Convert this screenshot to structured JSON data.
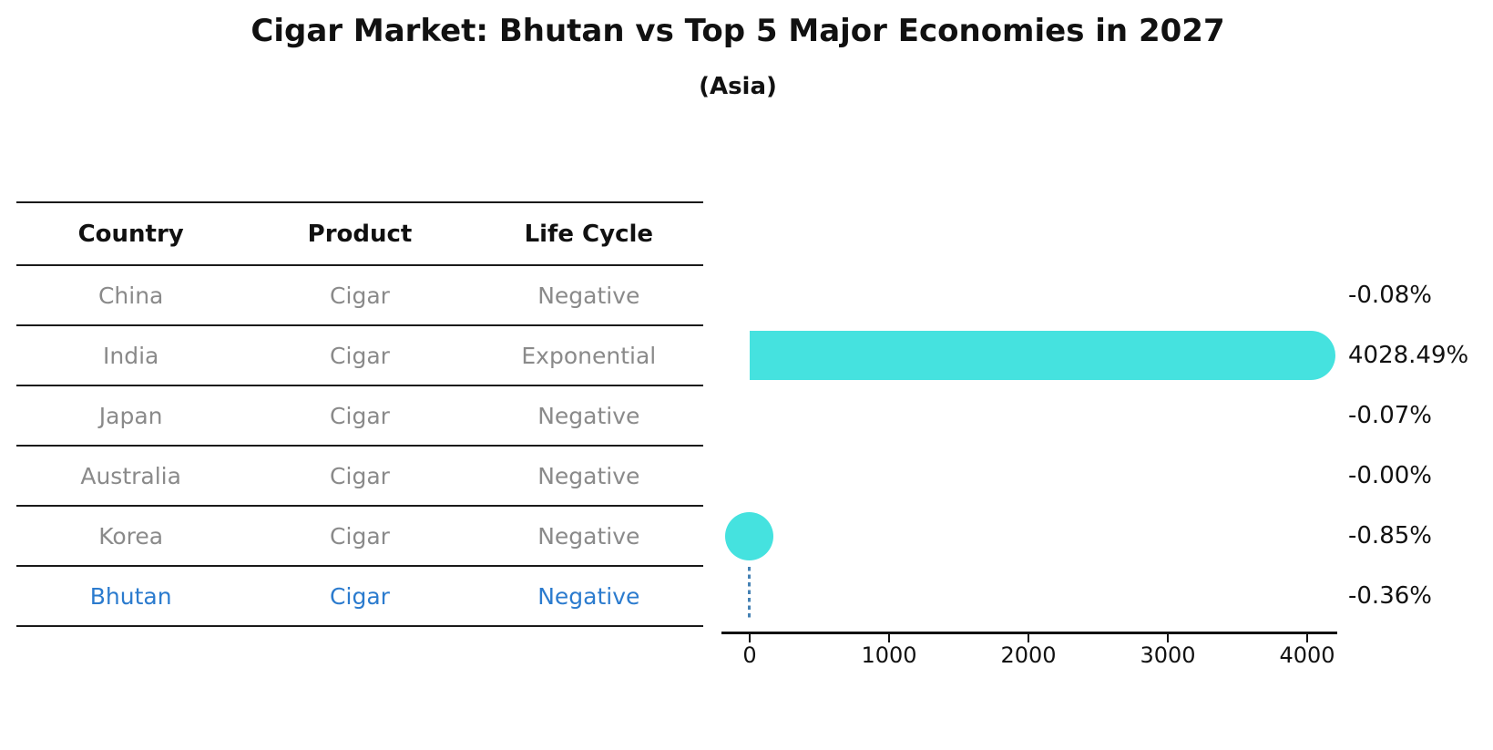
{
  "title": "Cigar Market: Bhutan vs Top 5 Major Economies in 2027",
  "subtitle": "(Asia)",
  "table": {
    "headers": [
      "Country",
      "Product",
      "Life Cycle"
    ],
    "rows": [
      {
        "country": "China",
        "product": "Cigar",
        "life_cycle": "Negative",
        "highlight": false
      },
      {
        "country": "India",
        "product": "Cigar",
        "life_cycle": "Exponential",
        "highlight": false
      },
      {
        "country": "Japan",
        "product": "Cigar",
        "life_cycle": "Negative",
        "highlight": false
      },
      {
        "country": "Australia",
        "product": "Cigar",
        "life_cycle": "Negative",
        "highlight": false
      },
      {
        "country": "Korea",
        "product": "Cigar",
        "life_cycle": "Negative",
        "highlight": false
      },
      {
        "country": "Bhutan",
        "product": "Cigar",
        "life_cycle": "Negative",
        "highlight": true
      }
    ],
    "row_text_color": "#8a8a8a",
    "highlight_text_color": "#2b7bce",
    "header_text_color": "#111111"
  },
  "chart_data": {
    "type": "bar",
    "orientation": "horizontal",
    "title": "Cigar Market: Bhutan vs Top 5 Major Economies in 2027",
    "subtitle": "(Asia)",
    "categories": [
      "China",
      "India",
      "Japan",
      "Australia",
      "Korea",
      "Bhutan"
    ],
    "values": [
      -0.08,
      4028.49,
      -0.07,
      -0.0,
      -0.85,
      -0.36
    ],
    "value_labels": [
      "-0.08%",
      "4028.49%",
      "-0.07%",
      "-0.00%",
      "-0.85%",
      "-0.36%"
    ],
    "unit": "%",
    "x_ticks": [
      0,
      1000,
      2000,
      3000,
      4000
    ],
    "x_tick_labels": [
      "0",
      "1000",
      "2000",
      "3000",
      "4000"
    ],
    "xlim": [
      -200,
      4220
    ],
    "grid": false,
    "legend": "none",
    "value_label_position": "right",
    "marker_types": [
      "none",
      "bar",
      "none",
      "none",
      "dot",
      "dashed-line"
    ],
    "bar_color": "#45e2df",
    "dashed_line_color": "#4682b4",
    "value_label_color": "#111111"
  }
}
